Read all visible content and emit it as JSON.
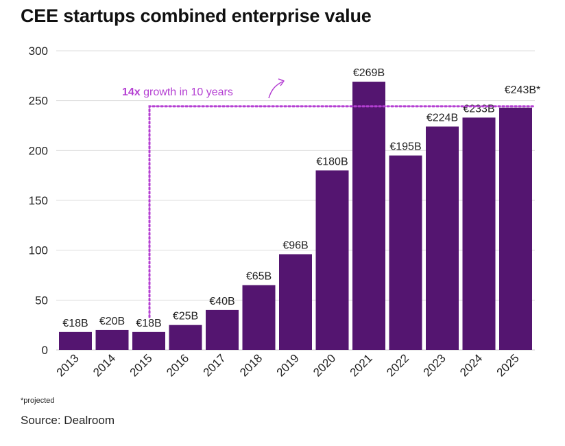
{
  "title": "CEE startups combined enterprise value",
  "footnote": "*projected",
  "source": "Source: Dealroom",
  "annotation": {
    "bold": "14x",
    "text": " growth in 10 years"
  },
  "colors": {
    "bar": "#541570",
    "annotation": "#b43fd2",
    "grid": "#dddddd",
    "text": "#222222"
  },
  "chart_data": {
    "type": "bar",
    "title": "CEE startups combined enterprise value",
    "xlabel": "",
    "ylabel": "",
    "categories": [
      "2013",
      "2014",
      "2015",
      "2016",
      "2017",
      "2018",
      "2019",
      "2020",
      "2021",
      "2022",
      "2023",
      "2024",
      "2025"
    ],
    "values": [
      18,
      20,
      18,
      25,
      40,
      65,
      96,
      180,
      269,
      195,
      224,
      233,
      243
    ],
    "labels": [
      "€18B",
      "€20B",
      "€18B",
      "€25B",
      "€40B",
      "€65B",
      "€96B",
      "€180B",
      "€269B",
      "€195B",
      "€224B",
      "€233B",
      "€243B*"
    ],
    "ylim": [
      0,
      300
    ],
    "yticks": [
      0,
      50,
      100,
      150,
      200,
      250,
      300
    ],
    "grid": true,
    "reference": {
      "from_category": "2015",
      "to_value": 243,
      "style": "dotted"
    }
  }
}
